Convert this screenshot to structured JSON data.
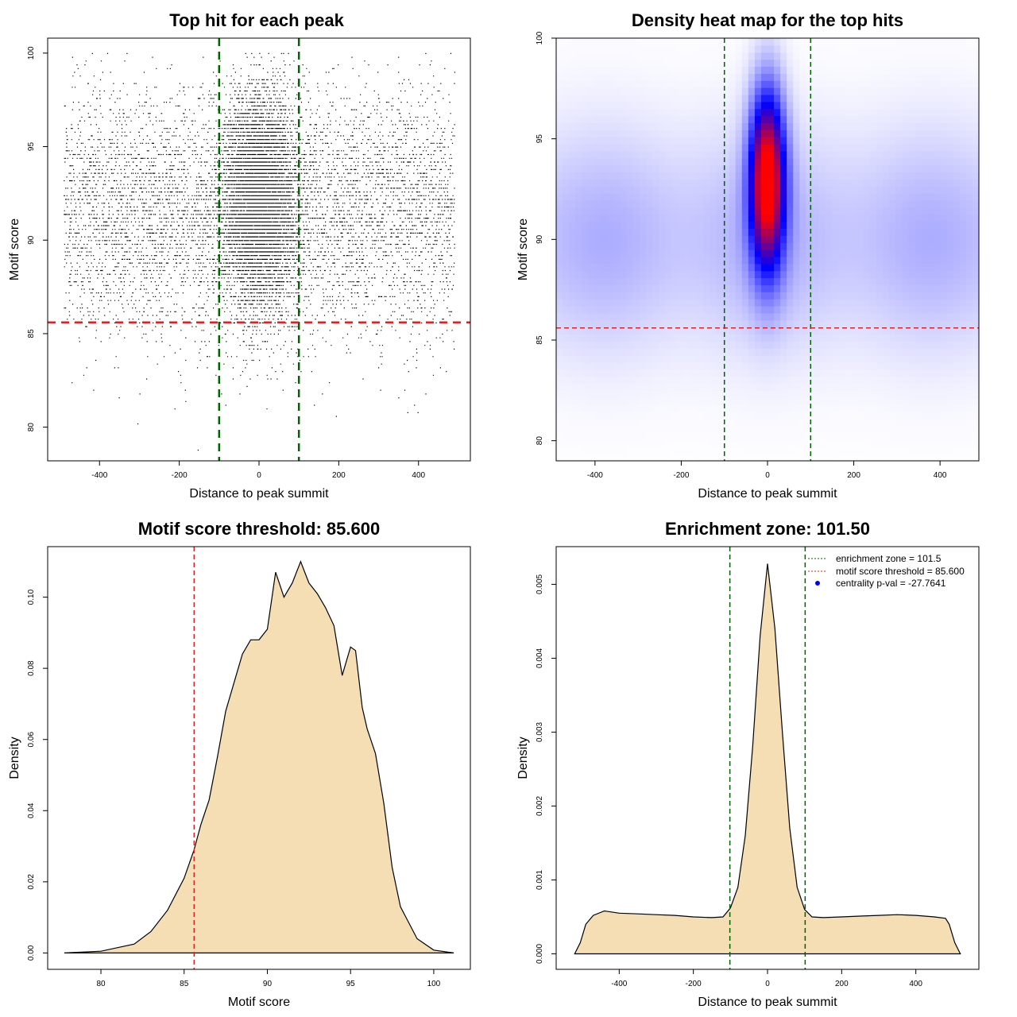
{
  "chart_data": [
    {
      "type": "scatter",
      "title": "Top hit for each peak",
      "xlabel": "Distance to peak summit",
      "ylabel": "Motif score",
      "xlim": [
        -530,
        530
      ],
      "ylim": [
        78.2,
        100.8
      ],
      "xticks": [
        -400,
        -200,
        0,
        200,
        400
      ],
      "yticks": [
        80,
        85,
        90,
        95,
        100
      ],
      "scatter_model": {
        "background_points": 6000,
        "central_points": 6500,
        "x_range": [
          -490,
          490
        ],
        "central_x_sd": 45,
        "score_mean": 91.5,
        "score_sd": 3.3,
        "central_score_mean": 92.2,
        "central_score_sd": 2.8
      },
      "vlines": [
        {
          "x": -100,
          "color": "#006400"
        },
        {
          "x": 100,
          "color": "#006400"
        }
      ],
      "hlines": [
        {
          "y": 85.6,
          "color": "#dd2222"
        }
      ]
    },
    {
      "type": "heatmap",
      "title": "Density heat map for the top hits",
      "xlabel": "Distance to peak summit",
      "ylabel": "Motif score",
      "xlim": [
        -490,
        490
      ],
      "ylim": [
        79.0,
        100.0
      ],
      "xticks": [
        -400,
        -200,
        0,
        200,
        400
      ],
      "yticks": [
        80,
        85,
        90,
        95,
        100
      ],
      "color_scale": [
        "#ffffff",
        "#0000ff",
        "#ff0000"
      ],
      "density_model": {
        "background": {
          "score_mean": 90.0,
          "score_sd": 4.0,
          "x_range": [
            -490,
            490
          ]
        },
        "core": {
          "x": 0,
          "x_sd": 28,
          "score_mean": 93.0,
          "score_sd": 3.0
        }
      },
      "vlines": [
        {
          "x": -100,
          "color": "#006400"
        },
        {
          "x": 100,
          "color": "#006400"
        }
      ],
      "hlines": [
        {
          "y": 85.6,
          "color": "#dd2222"
        }
      ]
    },
    {
      "type": "area",
      "title": "Motif score threshold: 85.600",
      "xlabel": "Motif score",
      "ylabel": "Density",
      "xlim": [
        76.8,
        102.2
      ],
      "ylim": [
        -0.0046,
        0.1142
      ],
      "xticks": [
        80,
        85,
        90,
        95,
        100
      ],
      "yticks": [
        0.0,
        0.02,
        0.04,
        0.06,
        0.08,
        0.1
      ],
      "ytick_labels": [
        "0.00",
        "0.02",
        "0.04",
        "0.06",
        "0.08",
        "0.10"
      ],
      "fill": "#f5deb3",
      "x": [
        77.8,
        80,
        82,
        83,
        84,
        85,
        85.6,
        86,
        86.5,
        87,
        87.5,
        88,
        88.5,
        89,
        89.5,
        90,
        90.5,
        91,
        91.5,
        92,
        92.5,
        93,
        93.5,
        94,
        94.5,
        95,
        95.3,
        95.7,
        96,
        96.5,
        97,
        97.5,
        98,
        99,
        100,
        101.2
      ],
      "y": [
        0.0,
        0.0005,
        0.0025,
        0.006,
        0.012,
        0.021,
        0.029,
        0.036,
        0.043,
        0.055,
        0.068,
        0.076,
        0.084,
        0.088,
        0.088,
        0.091,
        0.107,
        0.1,
        0.104,
        0.11,
        0.104,
        0.101,
        0.097,
        0.092,
        0.078,
        0.086,
        0.085,
        0.069,
        0.063,
        0.056,
        0.042,
        0.024,
        0.013,
        0.004,
        0.0008,
        0.0
      ],
      "vlines": [
        {
          "x": 85.6,
          "color": "#dd2222"
        }
      ]
    },
    {
      "type": "area",
      "title": "Enrichment zone: 101.50",
      "xlabel": "Distance to peak summit",
      "ylabel": "Density",
      "xlim": [
        -570,
        570
      ],
      "ylim": [
        -0.00021,
        0.00551
      ],
      "xticks": [
        -400,
        -200,
        0,
        200,
        400
      ],
      "yticks": [
        0.0,
        0.001,
        0.002,
        0.003,
        0.004,
        0.005
      ],
      "ytick_labels": [
        "0.000",
        "0.001",
        "0.002",
        "0.003",
        "0.004",
        "0.005"
      ],
      "fill": "#f5deb3",
      "x": [
        -520,
        -505,
        -490,
        -470,
        -440,
        -400,
        -350,
        -300,
        -250,
        -200,
        -150,
        -120,
        -100,
        -80,
        -60,
        -40,
        -20,
        0,
        20,
        40,
        60,
        80,
        100,
        120,
        150,
        200,
        250,
        300,
        350,
        400,
        450,
        480,
        490,
        505,
        520
      ],
      "y": [
        0.0,
        0.00015,
        0.0004,
        0.00052,
        0.00058,
        0.00055,
        0.00054,
        0.00053,
        0.00052,
        0.0005,
        0.00049,
        0.0005,
        0.00062,
        0.0009,
        0.0016,
        0.0028,
        0.0043,
        0.00528,
        0.0044,
        0.003,
        0.0017,
        0.0009,
        0.0006,
        0.0005,
        0.00049,
        0.0005,
        0.00051,
        0.00052,
        0.00053,
        0.00052,
        0.0005,
        0.00048,
        0.0004,
        0.00015,
        0.0
      ],
      "vlines": [
        {
          "x": -101.5,
          "color": "#006400"
        },
        {
          "x": 101.5,
          "color": "#006400"
        }
      ],
      "legend": {
        "position": "top-right",
        "entries": [
          {
            "label": "enrichment zone = 101.5",
            "color": "#006400",
            "style": "dotted-line"
          },
          {
            "label": "motif score threshold = 85.600",
            "color": "#dd2222",
            "style": "dotted-line"
          },
          {
            "label": "centrality p-val = -27.7641",
            "color": "#0000ff",
            "style": "point"
          }
        ]
      }
    }
  ]
}
